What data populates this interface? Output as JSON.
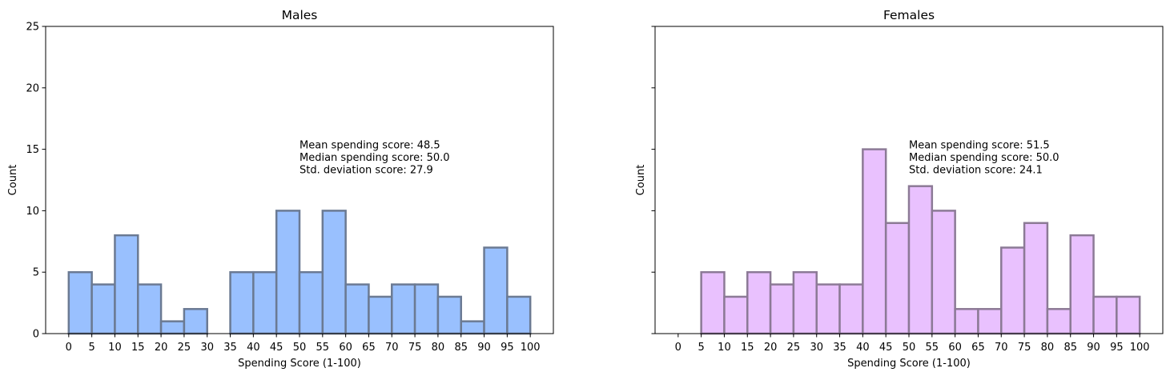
{
  "chart_data": [
    {
      "type": "bar",
      "title": "Males",
      "xlabel": "Spending Score (1-100)",
      "ylabel": "Count",
      "xlim": [
        -5,
        105
      ],
      "ylim": [
        0,
        25
      ],
      "xticks": [
        0,
        5,
        10,
        15,
        20,
        25,
        30,
        35,
        40,
        45,
        50,
        55,
        60,
        65,
        70,
        75,
        80,
        85,
        90,
        95,
        100
      ],
      "yticks": [
        0,
        5,
        10,
        15,
        20,
        25
      ],
      "show_y_tick_labels": true,
      "bin_edges": [
        0,
        5,
        10,
        15,
        20,
        25,
        30,
        35,
        40,
        45,
        50,
        55,
        60,
        65,
        70,
        75,
        80,
        85,
        90,
        95,
        100
      ],
      "values": [
        5,
        4,
        8,
        4,
        1,
        2,
        0,
        5,
        5,
        10,
        5,
        10,
        4,
        3,
        4,
        4,
        3,
        1,
        7,
        3
      ],
      "bar_color": "#99c0fe",
      "edge_color": "#6b7a93",
      "annotation": {
        "x": 50,
        "y": 15,
        "lines": [
          "Mean spending score: 48.5",
          "Median spending score: 50.0",
          "Std. deviation score: 27.9"
        ]
      },
      "grid": false
    },
    {
      "type": "bar",
      "title": "Females",
      "xlabel": "Spending Score (1-100)",
      "ylabel": "Count",
      "xlim": [
        -5,
        105
      ],
      "ylim": [
        0,
        25
      ],
      "xticks": [
        0,
        5,
        10,
        15,
        20,
        25,
        30,
        35,
        40,
        45,
        50,
        55,
        60,
        65,
        70,
        75,
        80,
        85,
        90,
        95,
        100
      ],
      "yticks": [
        0,
        5,
        10,
        15,
        20,
        25
      ],
      "show_y_tick_labels": false,
      "bin_edges": [
        0,
        5,
        10,
        15,
        20,
        25,
        30,
        35,
        40,
        45,
        50,
        55,
        60,
        65,
        70,
        75,
        80,
        85,
        90,
        95,
        100
      ],
      "values": [
        0,
        5,
        3,
        5,
        4,
        5,
        4,
        4,
        15,
        9,
        12,
        10,
        2,
        2,
        7,
        9,
        2,
        8,
        3,
        3
      ],
      "bar_color": "#e9c1fe",
      "edge_color": "#8c7a96",
      "annotation": {
        "x": 50,
        "y": 15,
        "lines": [
          "Mean spending score: 51.5",
          "Median spending score: 50.0",
          "Std. deviation score: 24.1"
        ]
      },
      "grid": false
    }
  ]
}
